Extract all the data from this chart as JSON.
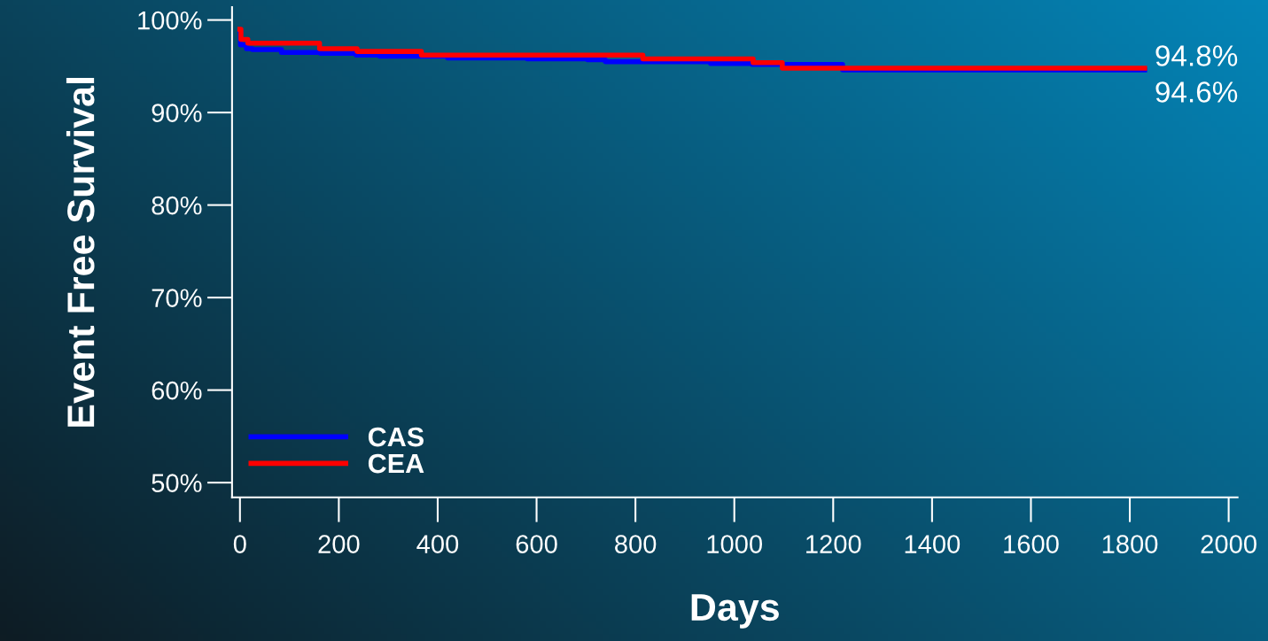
{
  "chart_data": {
    "type": "step",
    "xlabel": "Days",
    "ylabel": "Event Free Survival",
    "xlim": [
      -16,
      2018
    ],
    "xticks": [
      0,
      200,
      400,
      600,
      800,
      1000,
      1200,
      1400,
      1600,
      1800,
      2000
    ],
    "ylim": [
      48.4,
      101.4
    ],
    "yticks": [
      {
        "value": 50,
        "label": "50%"
      },
      {
        "value": 60,
        "label": "60%"
      },
      {
        "value": 70,
        "label": "70%"
      },
      {
        "value": 80,
        "label": "80%"
      },
      {
        "value": 90,
        "label": "90%"
      },
      {
        "value": 100,
        "label": "100%"
      }
    ],
    "grid": false,
    "legend": "bottom left",
    "marker": "none",
    "line_style": "solid",
    "series": [
      {
        "name": "CAS",
        "color": "#0000ff",
        "x": [
          0,
          1,
          13,
          25,
          84,
          163,
          235,
          282,
          420,
          581,
          703,
          739,
          952,
          1036,
          1219,
          1830
        ],
        "values": [
          98.9,
          97.3,
          96.9,
          96.8,
          96.5,
          96.4,
          96.2,
          96.1,
          95.9,
          95.8,
          95.7,
          95.5,
          95.3,
          95.2,
          94.6,
          94.6
        ]
      },
      {
        "name": "CEA",
        "color": "#ff0000",
        "x": [
          0,
          2,
          16,
          161,
          237,
          367,
          815,
          1038,
          1097,
          1830
        ],
        "values": [
          99.0,
          97.9,
          97.5,
          96.9,
          96.6,
          96.2,
          95.8,
          95.4,
          94.8,
          94.8
        ]
      }
    ],
    "annotations": [
      {
        "text": "94.8%",
        "x": 1830,
        "y": 94.8
      },
      {
        "text": "94.6%",
        "x": 1830,
        "y": 94.6
      }
    ]
  }
}
